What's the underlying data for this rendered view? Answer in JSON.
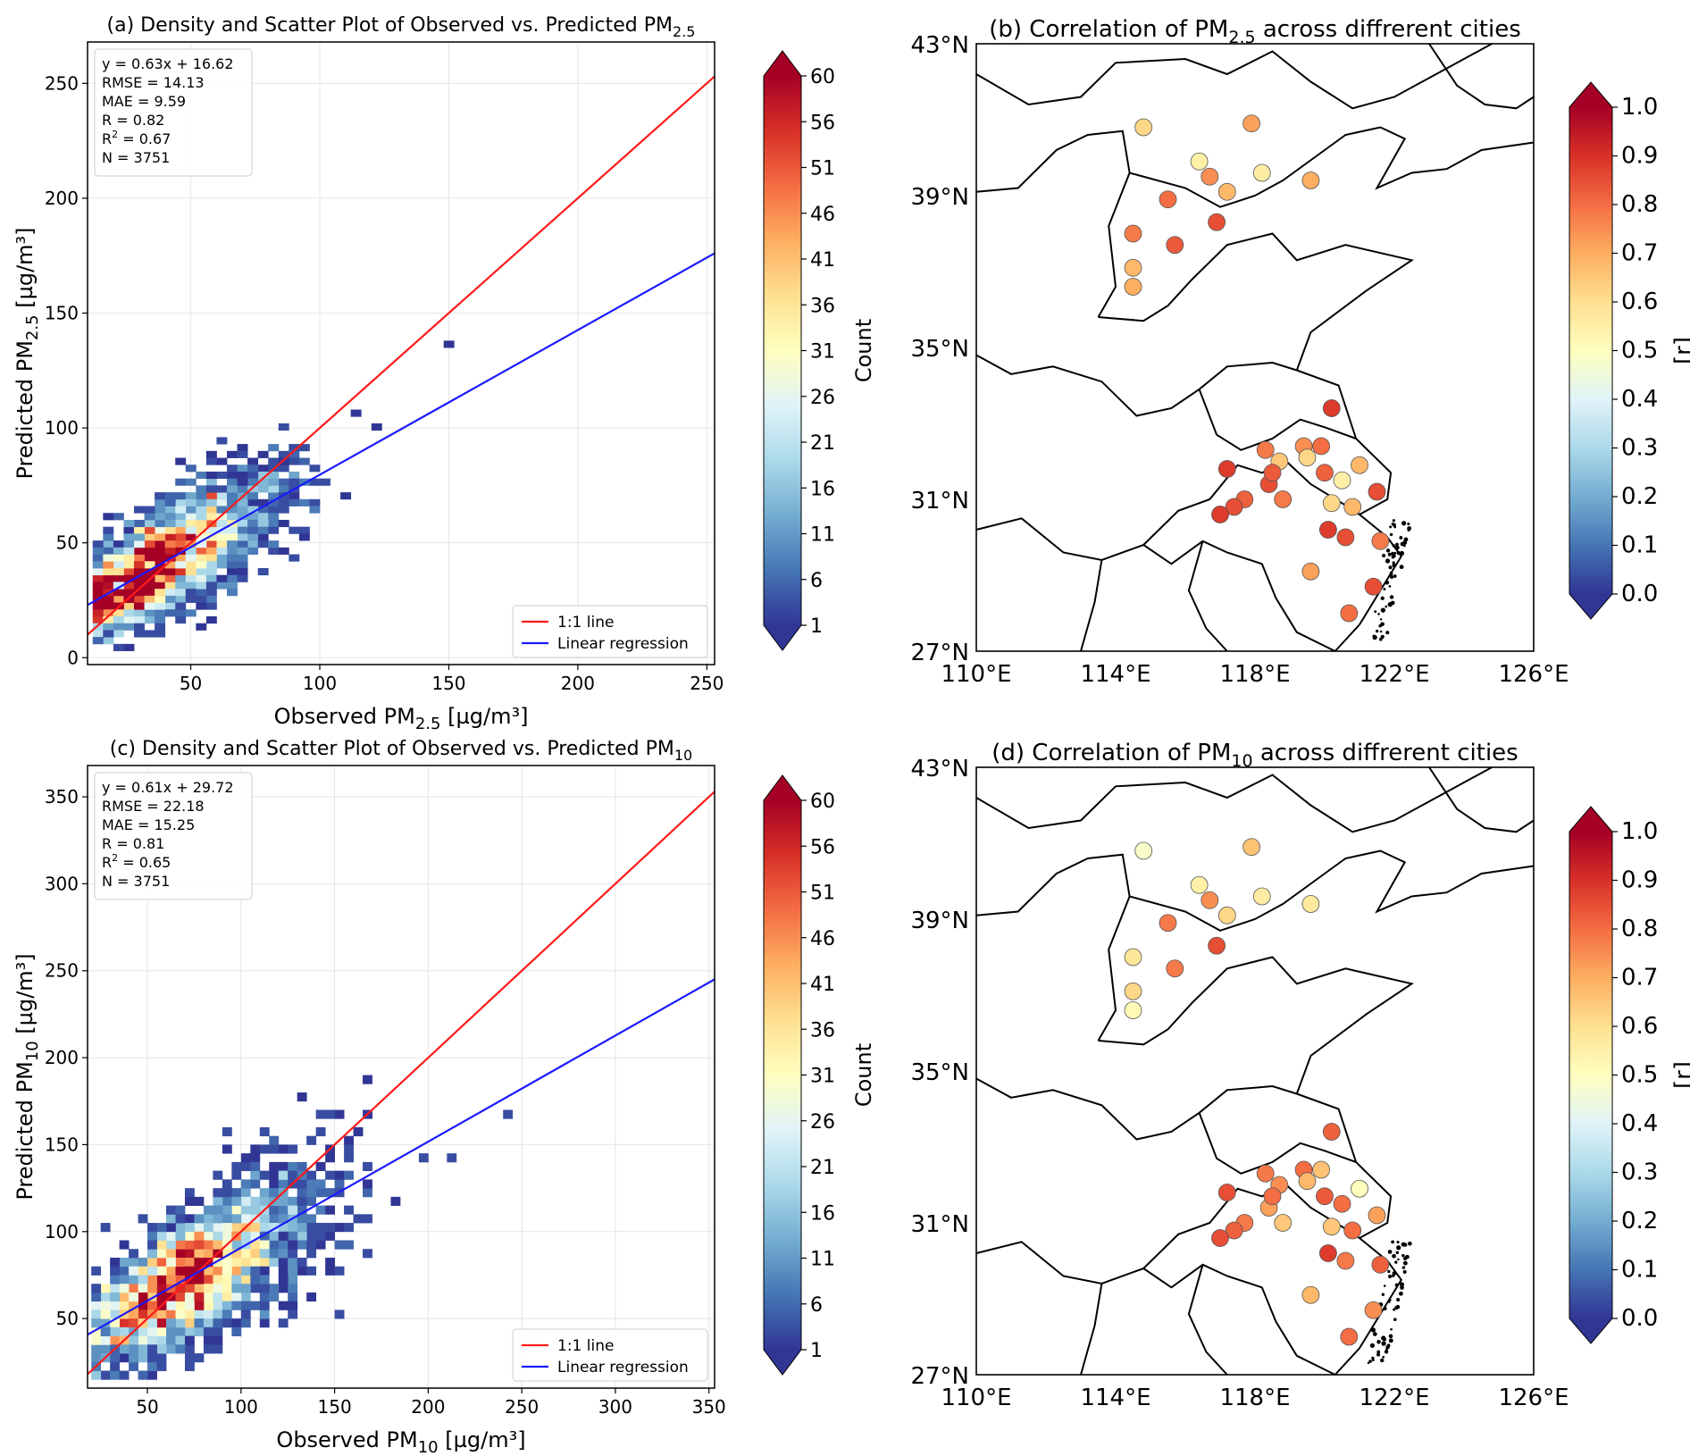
{
  "chart_data": [
    {
      "type": "heatmap",
      "title_main": "(a) Density and Scatter Plot of Observed vs. Predicted PM",
      "title_sub": "2.5",
      "xlabel": "Observed PM",
      "xlabel_sub": "2.5",
      "xlabel_unit": " [µg/m³]",
      "ylabel": "Predicted PM",
      "ylabel_sub": "2.5",
      "ylabel_unit": " [µg/m³]",
      "xlim": [
        10,
        253
      ],
      "ylim": [
        -3,
        268
      ],
      "xticks": [
        50,
        100,
        150,
        200,
        250
      ],
      "yticks": [
        0,
        50,
        100,
        150,
        200,
        250
      ],
      "grid": true,
      "stats": [
        "y = 0.63x + 16.62",
        "RMSE = 14.13",
        "MAE = 9.59",
        "R = 0.82",
        "R² = 0.67",
        "N = 3751"
      ],
      "stats_position": "top-left",
      "regression": {
        "slope": 0.63,
        "intercept": 16.62
      },
      "identity_line": true,
      "legend": [
        "1:1 line",
        "Linear regression"
      ],
      "legend_position": "lower-right",
      "line_colors": {
        "identity": "#ff1a1a",
        "regression": "#1a1aff"
      },
      "density_core": {
        "x": 27,
        "y": 30
      },
      "density_spread": {
        "x_sd": 26,
        "slope": 0.63,
        "intercept": 16.62,
        "y_sd": 14
      },
      "bin_width": {
        "x": 4,
        "y": 3
      },
      "colorbar": {
        "label": "Count",
        "ticks": [
          "60",
          "56",
          "51",
          "46",
          "41",
          "36",
          "31",
          "26",
          "21",
          "16",
          "11",
          "6",
          "1"
        ],
        "min": 1,
        "max": 60
      }
    },
    {
      "type": "heatmap",
      "title_main": "(c) Density and Scatter Plot of Observed vs. Predicted PM",
      "title_sub": "10",
      "xlabel": "Observed PM",
      "xlabel_sub": "10",
      "xlabel_unit": " [µg/m³]",
      "ylabel": "Predicted PM",
      "ylabel_sub": "10",
      "ylabel_unit": " [µg/m³]",
      "xlim": [
        18,
        353
      ],
      "ylim": [
        10,
        368
      ],
      "xticks": [
        50,
        100,
        150,
        200,
        250,
        300,
        350
      ],
      "yticks": [
        50,
        100,
        150,
        200,
        250,
        300,
        350
      ],
      "grid": true,
      "stats": [
        "y = 0.61x + 29.72",
        "RMSE = 22.18",
        "MAE = 15.25",
        "R = 0.81",
        "R² = 0.65",
        "N = 3751"
      ],
      "stats_position": "top-left",
      "regression": {
        "slope": 0.61,
        "intercept": 29.72
      },
      "identity_line": true,
      "legend": [
        "1:1 line",
        "Linear regression"
      ],
      "legend_position": "lower-right",
      "line_colors": {
        "identity": "#ff1a1a",
        "regression": "#1a1aff"
      },
      "density_core": {
        "x": 55,
        "y": 60
      },
      "density_spread": {
        "x_sd": 40,
        "slope": 0.61,
        "intercept": 29.72,
        "y_sd": 20
      },
      "bin_width": {
        "x": 5,
        "y": 5
      },
      "colorbar": {
        "label": "Count",
        "ticks": [
          "60",
          "56",
          "51",
          "46",
          "41",
          "36",
          "31",
          "26",
          "21",
          "16",
          "11",
          "6",
          "1"
        ],
        "min": 1,
        "max": 60
      }
    },
    {
      "type": "scatter",
      "title_main": "(b) Correlation of PM",
      "title_sub": "2.5",
      "title_tail": " across diffrerent cities",
      "xlim": [
        110,
        126
      ],
      "ylim": [
        27,
        43
      ],
      "xticks": [
        "110°E",
        "114°E",
        "118°E",
        "122°E",
        "126°E"
      ],
      "yticks": [
        "43°N",
        "39°N",
        "35°N",
        "31°N",
        "27°N"
      ],
      "colorbar": {
        "label": "[r]",
        "ticks": [
          "1.0",
          "0.9",
          "0.8",
          "0.7",
          "0.6",
          "0.5",
          "0.4",
          "0.3",
          "0.2",
          "0.1",
          "0.0"
        ],
        "min": 0,
        "max": 1
      },
      "points": [
        {
          "lon": 114.8,
          "lat": 40.8,
          "r": 0.62
        },
        {
          "lon": 116.4,
          "lat": 39.9,
          "r": 0.55
        },
        {
          "lon": 116.7,
          "lat": 39.5,
          "r": 0.75
        },
        {
          "lon": 117.2,
          "lat": 39.1,
          "r": 0.68
        },
        {
          "lon": 117.9,
          "lat": 40.9,
          "r": 0.72
        },
        {
          "lon": 118.2,
          "lat": 39.6,
          "r": 0.56
        },
        {
          "lon": 119.6,
          "lat": 39.4,
          "r": 0.7
        },
        {
          "lon": 115.5,
          "lat": 38.9,
          "r": 0.8
        },
        {
          "lon": 116.9,
          "lat": 38.3,
          "r": 0.85
        },
        {
          "lon": 114.5,
          "lat": 38.0,
          "r": 0.78
        },
        {
          "lon": 115.7,
          "lat": 37.7,
          "r": 0.83
        },
        {
          "lon": 114.5,
          "lat": 37.1,
          "r": 0.68
        },
        {
          "lon": 114.5,
          "lat": 36.6,
          "r": 0.7
        },
        {
          "lon": 120.2,
          "lat": 33.4,
          "r": 0.88
        },
        {
          "lon": 118.3,
          "lat": 32.3,
          "r": 0.78
        },
        {
          "lon": 118.7,
          "lat": 32.0,
          "r": 0.65
        },
        {
          "lon": 119.4,
          "lat": 32.4,
          "r": 0.75
        },
        {
          "lon": 119.5,
          "lat": 32.1,
          "r": 0.62
        },
        {
          "lon": 119.9,
          "lat": 32.4,
          "r": 0.8
        },
        {
          "lon": 120.0,
          "lat": 31.7,
          "r": 0.82
        },
        {
          "lon": 120.5,
          "lat": 31.5,
          "r": 0.55
        },
        {
          "lon": 121.0,
          "lat": 31.9,
          "r": 0.68
        },
        {
          "lon": 121.5,
          "lat": 31.2,
          "r": 0.85
        },
        {
          "lon": 117.2,
          "lat": 31.8,
          "r": 0.88
        },
        {
          "lon": 118.4,
          "lat": 31.4,
          "r": 0.85
        },
        {
          "lon": 118.5,
          "lat": 31.7,
          "r": 0.83
        },
        {
          "lon": 118.8,
          "lat": 31.0,
          "r": 0.78
        },
        {
          "lon": 117.7,
          "lat": 31.0,
          "r": 0.82
        },
        {
          "lon": 117.4,
          "lat": 30.8,
          "r": 0.85
        },
        {
          "lon": 117.0,
          "lat": 30.6,
          "r": 0.88
        },
        {
          "lon": 120.2,
          "lat": 30.9,
          "r": 0.62
        },
        {
          "lon": 120.8,
          "lat": 30.8,
          "r": 0.68
        },
        {
          "lon": 120.1,
          "lat": 30.2,
          "r": 0.88
        },
        {
          "lon": 120.6,
          "lat": 30.0,
          "r": 0.85
        },
        {
          "lon": 121.6,
          "lat": 29.9,
          "r": 0.78
        },
        {
          "lon": 119.6,
          "lat": 29.1,
          "r": 0.72
        },
        {
          "lon": 121.4,
          "lat": 28.7,
          "r": 0.85
        },
        {
          "lon": 120.7,
          "lat": 28.0,
          "r": 0.8
        }
      ]
    },
    {
      "type": "scatter",
      "title_main": "(d) Correlation of PM",
      "title_sub": "10",
      "title_tail": " across diffrerent cities",
      "xlim": [
        110,
        126
      ],
      "ylim": [
        27,
        43
      ],
      "xticks": [
        "110°E",
        "114°E",
        "118°E",
        "122°E",
        "126°E"
      ],
      "yticks": [
        "43°N",
        "39°N",
        "35°N",
        "31°N",
        "27°N"
      ],
      "colorbar": {
        "label": "[r]",
        "ticks": [
          "1.0",
          "0.9",
          "0.8",
          "0.7",
          "0.6",
          "0.5",
          "0.4",
          "0.3",
          "0.2",
          "0.1",
          "0.0"
        ],
        "min": 0,
        "max": 1
      },
      "points": [
        {
          "lon": 114.8,
          "lat": 40.8,
          "r": 0.48
        },
        {
          "lon": 116.4,
          "lat": 39.9,
          "r": 0.55
        },
        {
          "lon": 116.7,
          "lat": 39.5,
          "r": 0.75
        },
        {
          "lon": 117.2,
          "lat": 39.1,
          "r": 0.62
        },
        {
          "lon": 117.9,
          "lat": 40.9,
          "r": 0.66
        },
        {
          "lon": 118.2,
          "lat": 39.6,
          "r": 0.56
        },
        {
          "lon": 119.6,
          "lat": 39.4,
          "r": 0.57
        },
        {
          "lon": 115.5,
          "lat": 38.9,
          "r": 0.78
        },
        {
          "lon": 116.9,
          "lat": 38.3,
          "r": 0.85
        },
        {
          "lon": 114.5,
          "lat": 38.0,
          "r": 0.58
        },
        {
          "lon": 115.7,
          "lat": 37.7,
          "r": 0.78
        },
        {
          "lon": 114.5,
          "lat": 37.1,
          "r": 0.62
        },
        {
          "lon": 114.5,
          "lat": 36.6,
          "r": 0.52
        },
        {
          "lon": 120.2,
          "lat": 33.4,
          "r": 0.82
        },
        {
          "lon": 118.3,
          "lat": 32.3,
          "r": 0.78
        },
        {
          "lon": 118.7,
          "lat": 32.0,
          "r": 0.75
        },
        {
          "lon": 119.4,
          "lat": 32.4,
          "r": 0.8
        },
        {
          "lon": 119.5,
          "lat": 32.1,
          "r": 0.68
        },
        {
          "lon": 119.9,
          "lat": 32.4,
          "r": 0.66
        },
        {
          "lon": 120.0,
          "lat": 31.7,
          "r": 0.83
        },
        {
          "lon": 120.5,
          "lat": 31.5,
          "r": 0.8
        },
        {
          "lon": 121.0,
          "lat": 31.9,
          "r": 0.5
        },
        {
          "lon": 121.5,
          "lat": 31.2,
          "r": 0.72
        },
        {
          "lon": 117.2,
          "lat": 31.8,
          "r": 0.85
        },
        {
          "lon": 118.4,
          "lat": 31.4,
          "r": 0.72
        },
        {
          "lon": 118.5,
          "lat": 31.7,
          "r": 0.8
        },
        {
          "lon": 118.8,
          "lat": 31.0,
          "r": 0.65
        },
        {
          "lon": 117.7,
          "lat": 31.0,
          "r": 0.78
        },
        {
          "lon": 117.4,
          "lat": 30.8,
          "r": 0.82
        },
        {
          "lon": 117.0,
          "lat": 30.6,
          "r": 0.85
        },
        {
          "lon": 120.2,
          "lat": 30.9,
          "r": 0.65
        },
        {
          "lon": 120.8,
          "lat": 30.8,
          "r": 0.8
        },
        {
          "lon": 120.1,
          "lat": 30.2,
          "r": 0.88
        },
        {
          "lon": 120.6,
          "lat": 30.0,
          "r": 0.78
        },
        {
          "lon": 121.6,
          "lat": 29.9,
          "r": 0.82
        },
        {
          "lon": 119.6,
          "lat": 29.1,
          "r": 0.68
        },
        {
          "lon": 121.4,
          "lat": 28.7,
          "r": 0.75
        },
        {
          "lon": 120.7,
          "lat": 28.0,
          "r": 0.8
        }
      ]
    }
  ]
}
